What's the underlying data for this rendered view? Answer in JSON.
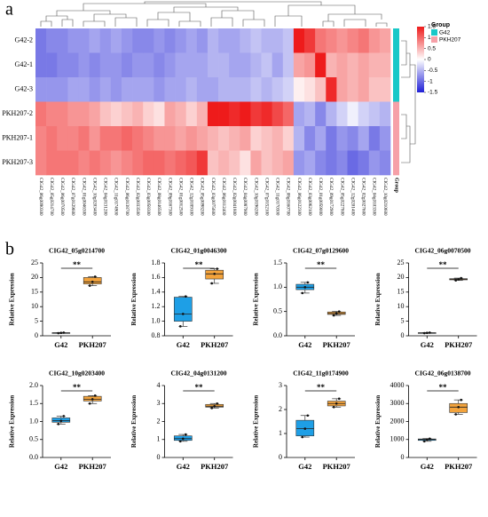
{
  "panel_labels": [
    "a",
    "b"
  ],
  "chart_data": [
    {
      "type": "heatmap",
      "rows": [
        "G42-2",
        "G42-1",
        "G42-3",
        "PKH207-2",
        "PKH207-1",
        "PKH207-3"
      ],
      "columns": [
        "CIG42_06g0090300",
        "CIG42_05g0214700",
        "CIG42_06g0070500",
        "CIG42_07g0129600",
        "CIG42_01g0046300",
        "CIG42_10g0203400",
        "CIG42_04g0131200",
        "CIG42_11g0174900",
        "CIG42_06g0138700",
        "CIG42_02g0033500",
        "CIG42_03g0058300",
        "CIG42_08g0146500",
        "CIG42_09g0167300",
        "CIG42_01g0012500",
        "CIG42_12g0189100",
        "CIG42_05g0098200",
        "CIG42_03g0075600",
        "CIG42_06g0112400",
        "CIG42_02g0041800",
        "CIG42_04g0087900",
        "CIG42_10g0196200",
        "CIG42_07g0152100",
        "CIG42_11g0170300",
        "CIG42_08g0160700",
        "CIG42_06g0122300",
        "CIG42_03g0062100",
        "CIG42_01g0059000",
        "CIG42_09g0172900",
        "CIG42_05g0227800",
        "CIG42_12g0201400",
        "CIG42_02g0027600",
        "CIG42_04g0103300",
        "CIG42_10g0210600"
      ],
      "values": [
        [
          -0.9,
          -0.8,
          -0.8,
          -0.7,
          -0.7,
          -0.6,
          -0.7,
          -0.6,
          -0.7,
          -0.8,
          -0.8,
          -0.7,
          -0.8,
          -0.7,
          -0.6,
          -0.7,
          -0.5,
          -0.6,
          -0.6,
          -0.5,
          -0.4,
          -0.5,
          -0.5,
          -0.4,
          1.5,
          1.3,
          0.9,
          0.8,
          0.7,
          0.8,
          0.9,
          0.7,
          0.6
        ],
        [
          -0.9,
          -0.9,
          -0.8,
          -0.8,
          -0.7,
          -0.8,
          -0.7,
          -0.7,
          -0.8,
          -0.7,
          -0.7,
          -0.8,
          -0.7,
          -0.6,
          -0.6,
          -0.6,
          -0.5,
          -0.5,
          -0.6,
          -0.6,
          -0.5,
          -0.4,
          -0.6,
          -0.4,
          0.6,
          0.7,
          1.5,
          0.5,
          0.6,
          0.5,
          0.6,
          0.5,
          0.5
        ],
        [
          -0.7,
          -0.7,
          -0.7,
          -0.6,
          -0.6,
          -0.7,
          -0.6,
          -0.7,
          -0.6,
          -0.6,
          -0.6,
          -0.7,
          -0.6,
          -0.6,
          -0.5,
          -0.6,
          -0.6,
          -0.5,
          -0.5,
          -0.5,
          -0.4,
          -0.5,
          -0.4,
          -0.3,
          0.1,
          0.2,
          0.4,
          1.4,
          0.6,
          0.5,
          0.6,
          0.4,
          0.4
        ],
        [
          0.9,
          0.8,
          0.8,
          0.7,
          0.7,
          0.6,
          0.4,
          0.3,
          0.4,
          0.5,
          0.3,
          0.2,
          0.6,
          0.5,
          0.3,
          0.5,
          1.5,
          1.5,
          1.4,
          1.5,
          1.3,
          1.4,
          1.2,
          1.0,
          -0.6,
          -0.5,
          -0.8,
          -0.5,
          -0.3,
          -0.1,
          -0.3,
          -0.4,
          -0.5
        ],
        [
          0.8,
          0.9,
          0.8,
          0.8,
          0.9,
          0.7,
          0.9,
          0.9,
          1.0,
          0.9,
          0.8,
          0.7,
          0.7,
          0.6,
          0.7,
          0.6,
          0.5,
          0.4,
          0.5,
          0.6,
          0.3,
          0.4,
          0.5,
          0.3,
          -0.5,
          -0.8,
          -0.6,
          -0.9,
          -0.7,
          -0.8,
          -0.6,
          -0.9,
          -0.7
        ],
        [
          0.8,
          0.9,
          0.9,
          0.9,
          0.8,
          0.9,
          0.8,
          0.7,
          0.8,
          0.9,
          1.0,
          1.0,
          0.9,
          1.0,
          1.1,
          1.3,
          0.4,
          0.5,
          0.4,
          0.2,
          0.6,
          0.4,
          0.5,
          0.6,
          -0.7,
          -0.6,
          -0.8,
          -0.9,
          -0.8,
          -1.0,
          -0.9,
          -0.7,
          -0.8
        ]
      ],
      "colors": [
        "#1f1fd6",
        "#ffffff",
        "#ee1b1b"
      ],
      "clim": [
        -1.5,
        1.5
      ],
      "cticks": [
        1.5,
        1,
        0.5,
        0,
        -0.5,
        -1,
        -1.5
      ],
      "legend_title": "Group",
      "groups": [
        {
          "name": "G42",
          "color": "#19c8c8"
        },
        {
          "name": "PKH207",
          "color": "#f6a0a8"
        }
      ],
      "row_group": [
        0,
        0,
        0,
        1,
        1,
        1
      ],
      "group_label": "Group"
    },
    {
      "type": "box",
      "title": "CIG42_05g0214700",
      "ylabel": "Relative Expression",
      "categories": [
        "G42",
        "PKH207"
      ],
      "colors": [
        "#1e9fe6",
        "#f3a33c"
      ],
      "stats": [
        {
          "min": 0.9,
          "q1": 0.95,
          "median": 1.0,
          "q3": 1.05,
          "max": 1.1
        },
        {
          "min": 17.2,
          "q1": 17.8,
          "median": 18.5,
          "q3": 20,
          "max": 20.3
        }
      ],
      "points": [
        [
          0.9,
          1.0,
          1.1
        ],
        [
          17.2,
          18.5,
          20.3
        ]
      ],
      "significance": "**",
      "ylim": [
        0,
        25
      ],
      "yticks": [
        0,
        5,
        10,
        15,
        20,
        25
      ]
    },
    {
      "type": "box",
      "title": "CIG42_01g0046300",
      "ylabel": "Relative Expression",
      "categories": [
        "G42",
        "PKH207"
      ],
      "colors": [
        "#1e9fe6",
        "#f3a33c"
      ],
      "stats": [
        {
          "min": 0.93,
          "q1": 1.0,
          "median": 1.1,
          "q3": 1.33,
          "max": 1.34
        },
        {
          "min": 1.52,
          "q1": 1.58,
          "median": 1.65,
          "q3": 1.7,
          "max": 1.72
        }
      ],
      "points": [
        [
          0.93,
          1.1,
          1.34
        ],
        [
          1.52,
          1.65,
          1.72
        ]
      ],
      "significance": "**",
      "ylim": [
        0.8,
        1.8
      ],
      "yticks": [
        0.8,
        {
          "value": 1,
          "label": "1.0"
        },
        1.2,
        1.4,
        1.6,
        1.8
      ]
    },
    {
      "type": "box",
      "title": "CIG42_07g0129600",
      "ylabel": "Relative Expression",
      "categories": [
        "G42",
        "PKH207"
      ],
      "colors": [
        "#1e9fe6",
        "#f3a33c"
      ],
      "stats": [
        {
          "min": 0.88,
          "q1": 0.95,
          "median": 1.0,
          "q3": 1.06,
          "max": 1.1
        },
        {
          "min": 0.42,
          "q1": 0.44,
          "median": 0.46,
          "q3": 0.49,
          "max": 0.5
        }
      ],
      "points": [
        [
          0.88,
          1.0,
          1.1
        ],
        [
          0.42,
          0.46,
          0.5
        ]
      ],
      "significance": "**",
      "ylim": [
        0,
        1.5
      ],
      "yticks": [
        {
          "value": 0,
          "label": "0.0"
        },
        0.5,
        {
          "value": 1,
          "label": "1.0"
        },
        1.5
      ]
    },
    {
      "type": "box",
      "title": "CIG42_06g0070500",
      "ylabel": "Relative Expression",
      "categories": [
        "G42",
        "PKH207"
      ],
      "colors": [
        "#1e9fe6",
        "#f3a33c"
      ],
      "stats": [
        {
          "min": 0.9,
          "q1": 0.95,
          "median": 1.0,
          "q3": 1.05,
          "max": 1.1
        },
        {
          "min": 19,
          "q1": 19.2,
          "median": 19.4,
          "q3": 19.6,
          "max": 19.8
        }
      ],
      "points": [
        [
          0.9,
          1.0,
          1.1
        ],
        [
          19,
          19.4,
          19.8
        ]
      ],
      "significance": "**",
      "ylim": [
        0,
        25
      ],
      "yticks": [
        0,
        5,
        10,
        15,
        20,
        25
      ]
    },
    {
      "type": "box",
      "title": "CIG42_10g0203400",
      "ylabel": "Relative Expression",
      "categories": [
        "G42",
        "PKH207"
      ],
      "colors": [
        "#1e9fe6",
        "#f3a33c"
      ],
      "stats": [
        {
          "min": 0.93,
          "q1": 0.98,
          "median": 1.02,
          "q3": 1.1,
          "max": 1.15
        },
        {
          "min": 1.5,
          "q1": 1.57,
          "median": 1.62,
          "q3": 1.7,
          "max": 1.72
        }
      ],
      "points": [
        [
          0.93,
          1.02,
          1.15
        ],
        [
          1.5,
          1.62,
          1.72
        ]
      ],
      "significance": "**",
      "ylim": [
        0,
        2
      ],
      "yticks": [
        {
          "value": 0,
          "label": "0.0"
        },
        0.5,
        {
          "value": 1,
          "label": "1.0"
        },
        1.5,
        {
          "value": 2,
          "label": "2.0"
        }
      ]
    },
    {
      "type": "box",
      "title": "CIG42_04g0131200",
      "ylabel": "Relative Expression",
      "categories": [
        "G42",
        "PKH207"
      ],
      "colors": [
        "#1e9fe6",
        "#f3a33c"
      ],
      "stats": [
        {
          "min": 0.9,
          "q1": 0.95,
          "median": 1.05,
          "q3": 1.2,
          "max": 1.28
        },
        {
          "min": 2.75,
          "q1": 2.8,
          "median": 2.85,
          "q3": 2.95,
          "max": 3.0
        }
      ],
      "points": [
        [
          0.9,
          1.05,
          1.28
        ],
        [
          2.75,
          2.85,
          3.0
        ]
      ],
      "significance": "**",
      "ylim": [
        0,
        4
      ],
      "yticks": [
        0,
        1,
        2,
        3,
        4
      ]
    },
    {
      "type": "box",
      "title": "CIG42_11g0174900",
      "ylabel": "Relative Expression",
      "categories": [
        "G42",
        "PKH207"
      ],
      "colors": [
        "#1e9fe6",
        "#f3a33c"
      ],
      "stats": [
        {
          "min": 0.85,
          "q1": 0.9,
          "median": 1.2,
          "q3": 1.55,
          "max": 1.75
        },
        {
          "min": 2.1,
          "q1": 2.15,
          "median": 2.25,
          "q3": 2.35,
          "max": 2.45
        }
      ],
      "points": [
        [
          0.85,
          1.2,
          1.75
        ],
        [
          2.1,
          2.25,
          2.45
        ]
      ],
      "significance": "**",
      "ylim": [
        0,
        3
      ],
      "yticks": [
        0,
        1,
        2,
        3
      ]
    },
    {
      "type": "box",
      "title": "CIG42_06g0138700",
      "ylabel": "Relative Expression",
      "categories": [
        "G42",
        "PKH207"
      ],
      "colors": [
        "#1e9fe6",
        "#f3a33c"
      ],
      "stats": [
        {
          "min": 900,
          "q1": 950,
          "median": 1000,
          "q3": 1030,
          "max": 1050
        },
        {
          "min": 2400,
          "q1": 2500,
          "median": 2800,
          "q3": 3000,
          "max": 3200
        }
      ],
      "points": [
        [
          900,
          1000,
          1050
        ],
        [
          2400,
          2800,
          3200
        ]
      ],
      "significance": "**",
      "ylim": [
        0,
        4000
      ],
      "yticks": [
        0,
        1000,
        2000,
        3000,
        4000
      ]
    }
  ]
}
